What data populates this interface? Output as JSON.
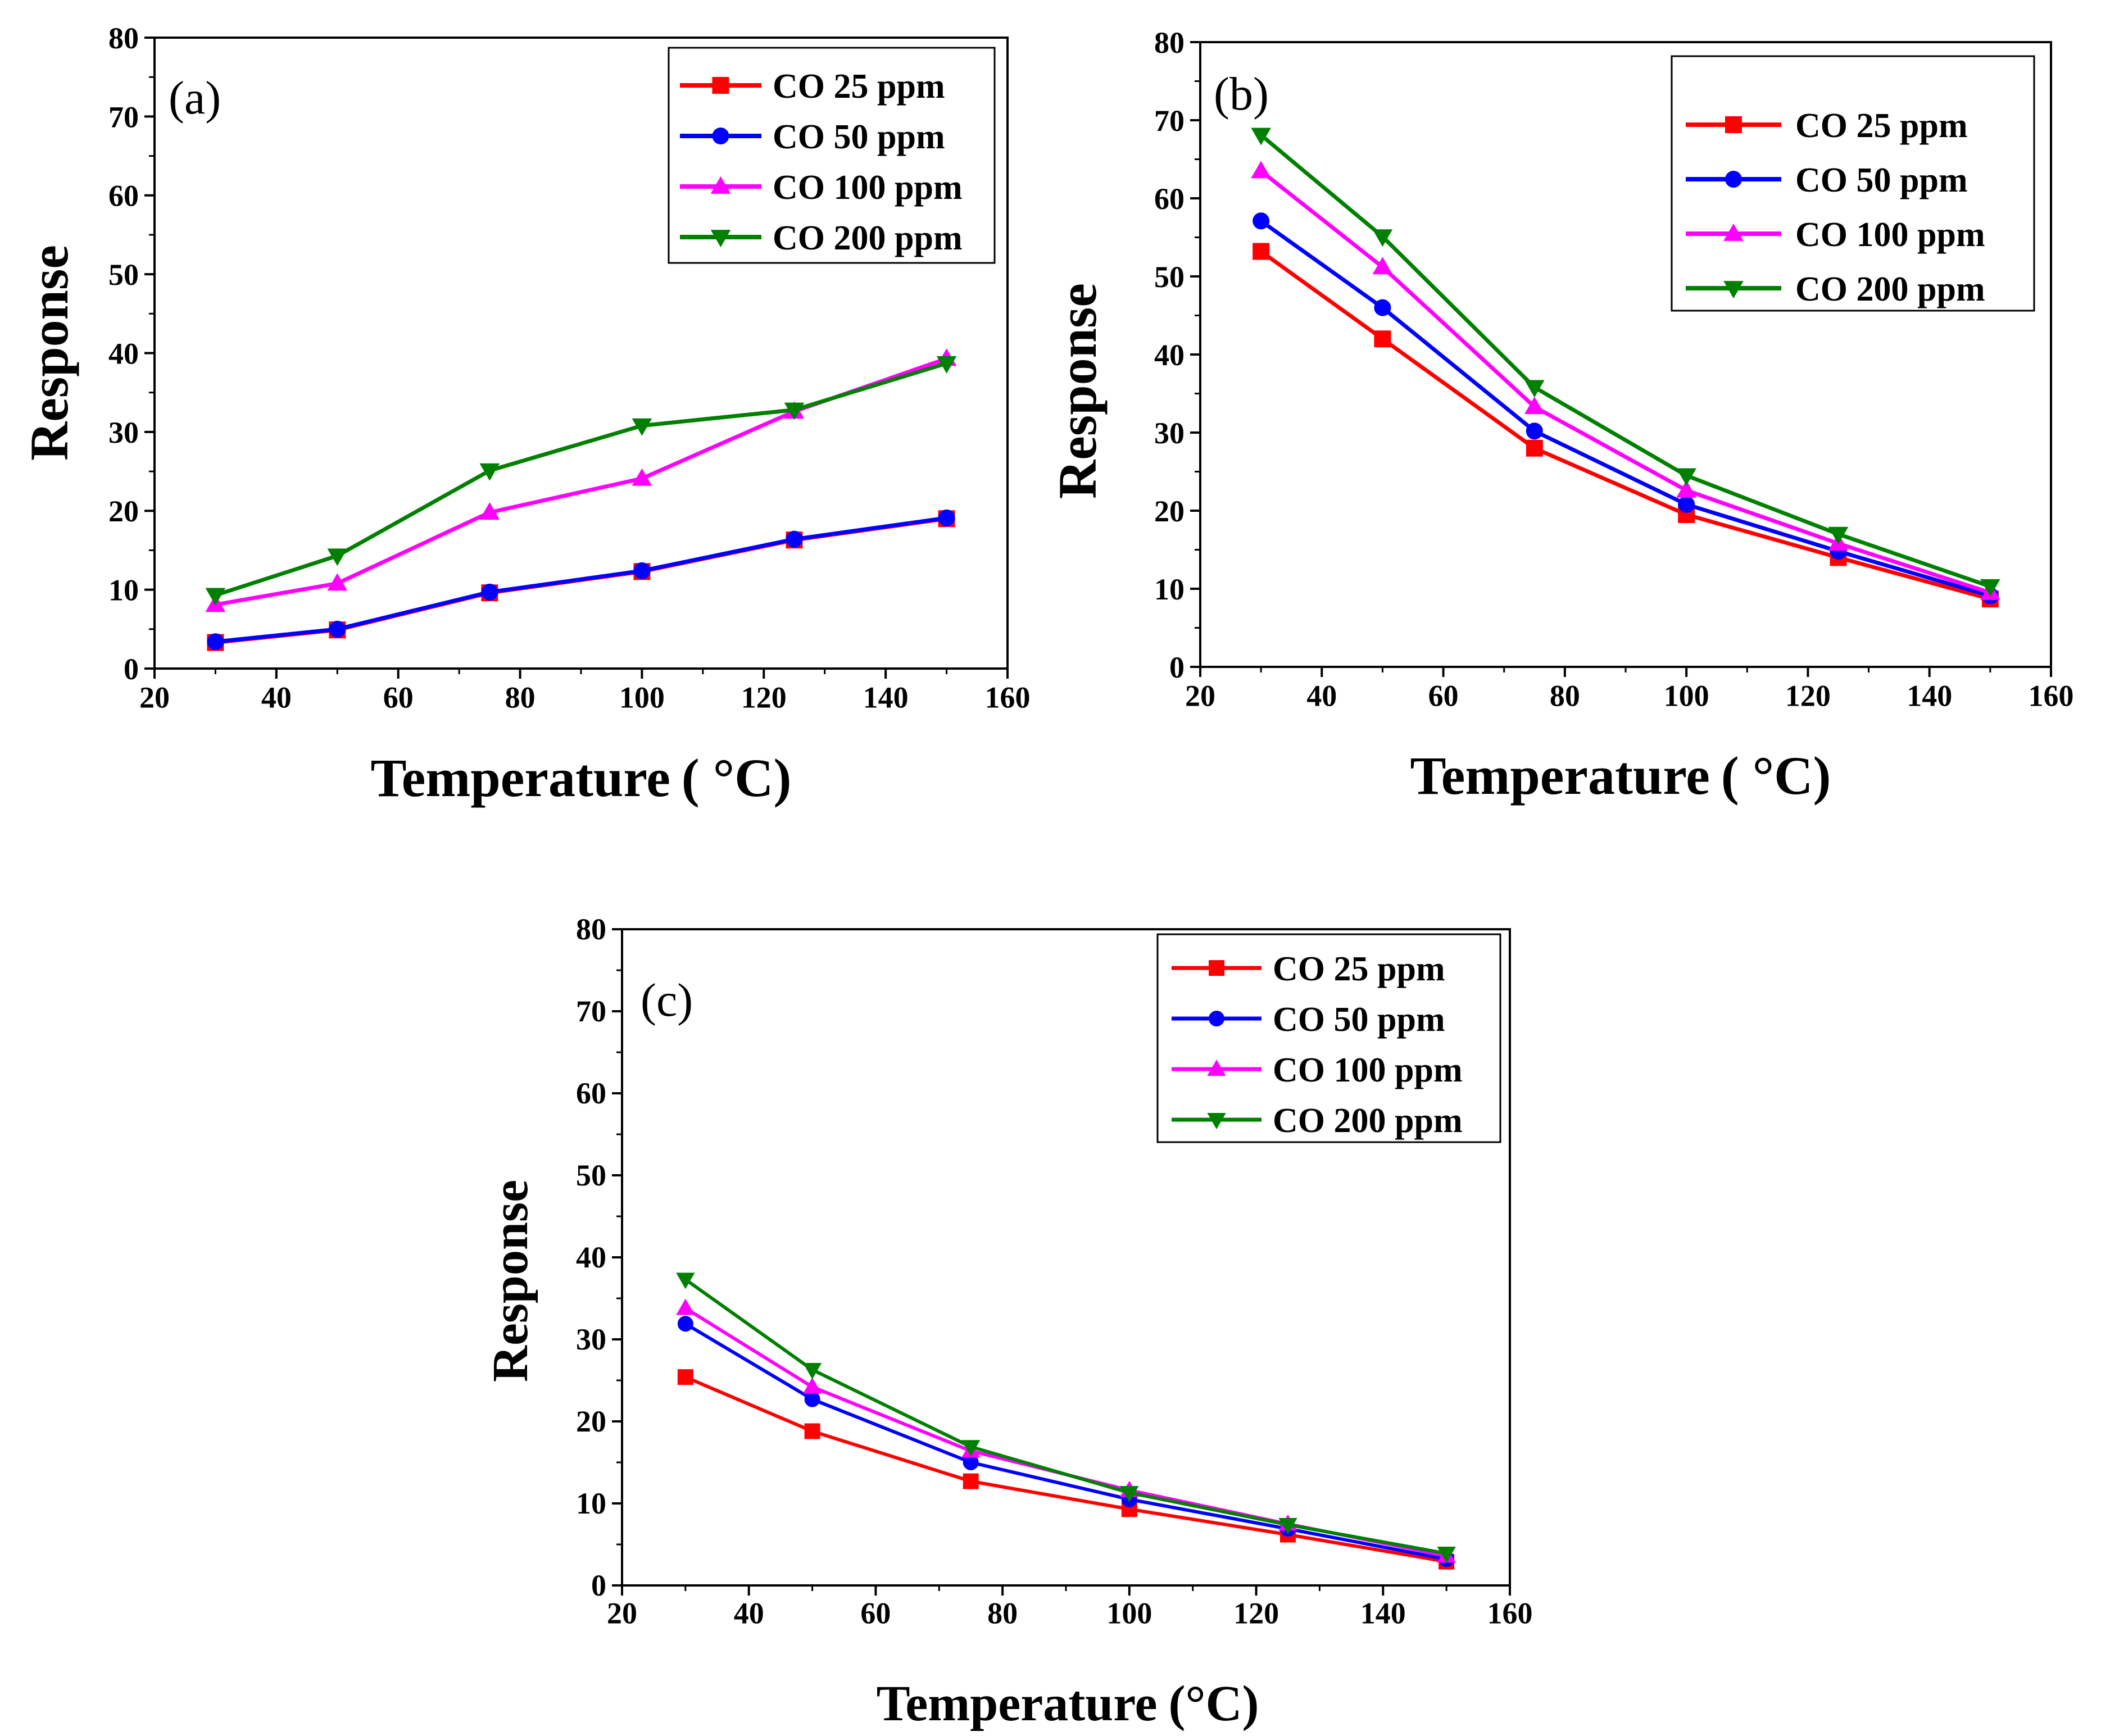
{
  "chart_data": [
    {
      "type": "line",
      "panel_label": "(a)",
      "title": "",
      "xlabel": "Temperature",
      "xlabel_unit": "( °C)",
      "ylabel": "Response",
      "xlim": [
        20,
        160
      ],
      "ylim": [
        0,
        80
      ],
      "xticks": [
        20,
        40,
        60,
        80,
        100,
        120,
        140,
        160
      ],
      "yticks": [
        0,
        10,
        20,
        30,
        40,
        50,
        60,
        70,
        80
      ],
      "legend_position": "top-right",
      "x": [
        30,
        50,
        75,
        100,
        125,
        150
      ],
      "series": [
        {
          "name": "CO 25 ppm",
          "color": "#ff0000",
          "marker": "square",
          "values": [
            3.3,
            4.9,
            9.6,
            12.3,
            16.3,
            19.0
          ]
        },
        {
          "name": "CO 50 ppm",
          "color": "#0000ff",
          "marker": "circle",
          "values": [
            3.4,
            5.0,
            9.7,
            12.4,
            16.4,
            19.1
          ]
        },
        {
          "name": "CO 100 ppm",
          "color": "#ff00ff",
          "marker": "triangle-up",
          "values": [
            8.1,
            10.8,
            19.8,
            24.1,
            32.6,
            39.3
          ]
        },
        {
          "name": "CO 200 ppm",
          "color": "#008000",
          "marker": "triangle-down",
          "values": [
            9.3,
            14.3,
            25.1,
            30.8,
            32.8,
            38.7
          ]
        }
      ]
    },
    {
      "type": "line",
      "panel_label": "(b)",
      "title": "",
      "xlabel": "Temperature",
      "xlabel_unit": "( °C)",
      "ylabel": "Response",
      "xlim": [
        20,
        160
      ],
      "ylim": [
        0,
        80
      ],
      "xticks": [
        20,
        40,
        60,
        80,
        100,
        120,
        140,
        160
      ],
      "yticks": [
        0,
        10,
        20,
        30,
        40,
        50,
        60,
        70,
        80
      ],
      "legend_position": "top-right",
      "x": [
        30,
        50,
        75,
        100,
        125,
        150
      ],
      "series": [
        {
          "name": "CO 25 ppm",
          "color": "#ff0000",
          "marker": "square",
          "values": [
            53.2,
            42.0,
            28.0,
            19.5,
            14.0,
            8.7
          ]
        },
        {
          "name": "CO 50 ppm",
          "color": "#0000ff",
          "marker": "circle",
          "values": [
            57.1,
            46.0,
            30.2,
            20.8,
            14.8,
            9.1
          ]
        },
        {
          "name": "CO 100 ppm",
          "color": "#ff00ff",
          "marker": "triangle-up",
          "values": [
            63.5,
            51.2,
            33.3,
            22.6,
            15.8,
            9.5
          ]
        },
        {
          "name": "CO 200 ppm",
          "color": "#008000",
          "marker": "triangle-down",
          "values": [
            68.1,
            55.1,
            35.8,
            24.5,
            17.0,
            10.3
          ]
        }
      ]
    },
    {
      "type": "line",
      "panel_label": "(c)",
      "title": "",
      "xlabel": "Temperature",
      "xlabel_unit": "(°C)",
      "ylabel": "Response",
      "xlim": [
        20,
        160
      ],
      "ylim": [
        0,
        80
      ],
      "xticks": [
        20,
        40,
        60,
        80,
        100,
        120,
        140,
        160
      ],
      "yticks": [
        0,
        10,
        20,
        30,
        40,
        50,
        60,
        70,
        80
      ],
      "legend_position": "top-right",
      "x": [
        30,
        50,
        75,
        100,
        125,
        150
      ],
      "series": [
        {
          "name": "CO 25 ppm",
          "color": "#ff0000",
          "marker": "square",
          "values": [
            25.4,
            18.8,
            12.7,
            9.3,
            6.2,
            2.9
          ]
        },
        {
          "name": "CO 50 ppm",
          "color": "#0000ff",
          "marker": "circle",
          "values": [
            31.9,
            22.7,
            15.0,
            10.5,
            6.9,
            3.2
          ]
        },
        {
          "name": "CO 100 ppm",
          "color": "#ff00ff",
          "marker": "triangle-up",
          "values": [
            33.8,
            24.2,
            16.4,
            11.6,
            7.5,
            3.6
          ]
        },
        {
          "name": "CO 200 ppm",
          "color": "#008000",
          "marker": "triangle-down",
          "values": [
            37.3,
            26.3,
            16.9,
            11.3,
            7.4,
            3.9
          ]
        }
      ]
    }
  ]
}
